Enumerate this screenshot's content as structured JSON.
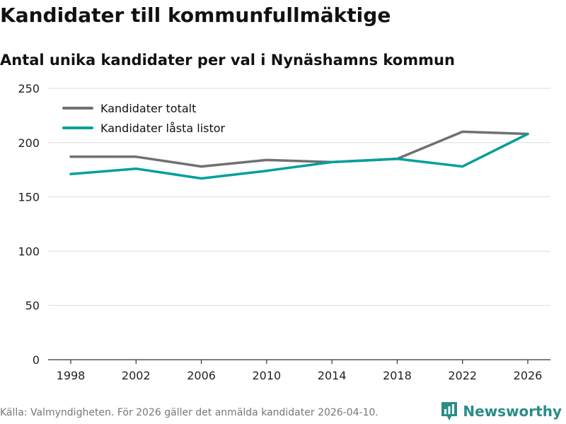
{
  "header": {
    "title": "Kandidater till kommunfullmäktige",
    "subtitle": "Antal unika kandidater per val i Nynäshamns kommun"
  },
  "footer": {
    "source": "Källa: Valmyndigheten. För 2026 gäller det anmälda kandidater 2026-04-10.",
    "brand": "Newsworthy"
  },
  "colors": {
    "series_total": "#707070",
    "series_locked": "#00a09a",
    "grid": "#dddddd",
    "axis": "#333333",
    "brand": "#2a8c88"
  },
  "chart_data": {
    "type": "line",
    "title": "Kandidater till kommunfullmäktige",
    "subtitle": "Antal unika kandidater per val i Nynäshamns kommun",
    "xlabel": "",
    "ylabel": "",
    "x": [
      "1998",
      "2002",
      "2006",
      "2010",
      "2014",
      "2018",
      "2022",
      "2026"
    ],
    "ylim": [
      0,
      250
    ],
    "yticks": [
      "0",
      "50",
      "100",
      "150",
      "200",
      "250"
    ],
    "grid": true,
    "legend_position": "top-left",
    "series": [
      {
        "name": "Kandidater totalt",
        "values": [
          187,
          187,
          178,
          184,
          182,
          185,
          210,
          208
        ]
      },
      {
        "name": "Kandidater låsta listor",
        "values": [
          171,
          176,
          167,
          174,
          182,
          185,
          178,
          208
        ]
      }
    ]
  }
}
